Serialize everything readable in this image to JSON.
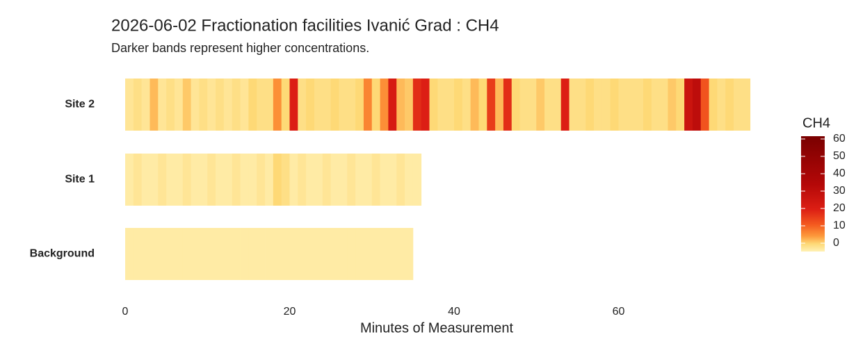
{
  "chart_data": {
    "type": "heatmap",
    "title": "2026-06-02 Fractionation facilities Ivanić Grad : CH4",
    "subtitle": "Darker bands represent higher concentrations.",
    "x_label": "Minutes of Measurement",
    "xlim": [
      0,
      80
    ],
    "xticks": [
      0,
      20,
      40,
      60
    ],
    "legend_title": "CH4",
    "clim": [
      0,
      60
    ],
    "cticks": [
      0,
      10,
      20,
      30,
      40,
      50,
      60
    ],
    "color_stops": [
      {
        "value": 0,
        "color": "#fff1b5"
      },
      {
        "value": 4,
        "color": "#fed976"
      },
      {
        "value": 8,
        "color": "#fd9a3c"
      },
      {
        "value": 14,
        "color": "#f45a1f"
      },
      {
        "value": 22,
        "color": "#dc1e14"
      },
      {
        "value": 35,
        "color": "#b40808"
      },
      {
        "value": 60,
        "color": "#7a0000"
      }
    ],
    "series": [
      {
        "name": "Site 2",
        "x": [
          0,
          1,
          2,
          3,
          4,
          5,
          6,
          7,
          8,
          9,
          10,
          11,
          12,
          13,
          14,
          15,
          16,
          17,
          18,
          19,
          20,
          21,
          22,
          23,
          24,
          25,
          26,
          27,
          28,
          29,
          30,
          31,
          32,
          33,
          34,
          35,
          36,
          37,
          38,
          39,
          40,
          41,
          42,
          43,
          44,
          45,
          46,
          47,
          48,
          49,
          50,
          51,
          52,
          53,
          54,
          55,
          56,
          57,
          58,
          59,
          60,
          61,
          62,
          63,
          64,
          65,
          66,
          67,
          68,
          69,
          70,
          71,
          72,
          73,
          74,
          75
        ],
        "values": [
          2,
          3,
          2,
          6,
          2,
          3,
          2,
          5,
          2,
          3,
          2,
          3,
          2,
          3,
          2,
          4,
          3,
          3,
          9,
          4,
          22,
          3,
          4,
          3,
          3,
          4,
          3,
          3,
          4,
          10,
          4,
          9,
          24,
          6,
          5,
          20,
          22,
          4,
          3,
          3,
          4,
          3,
          6,
          4,
          18,
          6,
          20,
          4,
          3,
          3,
          5,
          3,
          3,
          22,
          3,
          3,
          4,
          3,
          3,
          4,
          3,
          3,
          3,
          4,
          3,
          3,
          5,
          4,
          28,
          32,
          15,
          4,
          3,
          4,
          3,
          3
        ]
      },
      {
        "name": "Site 1",
        "x": [
          0,
          1,
          2,
          3,
          4,
          5,
          6,
          7,
          8,
          9,
          10,
          11,
          12,
          13,
          14,
          15,
          16,
          17,
          18,
          19,
          20,
          21,
          22,
          23,
          24,
          25,
          26,
          27,
          28,
          29,
          30,
          31,
          32,
          33,
          34,
          35
        ],
        "values": [
          1,
          2,
          1,
          1,
          2,
          1,
          1,
          2,
          1,
          1,
          2,
          1,
          1,
          2,
          1,
          1,
          2,
          1,
          4,
          3,
          1,
          2,
          1,
          1,
          2,
          1,
          1,
          2,
          1,
          1,
          2,
          1,
          1,
          2,
          1,
          1
        ]
      },
      {
        "name": "Background",
        "x": [
          0,
          1,
          2,
          3,
          4,
          5,
          6,
          7,
          8,
          9,
          10,
          11,
          12,
          13,
          14,
          15,
          16,
          17,
          18,
          19,
          20,
          21,
          22,
          23,
          24,
          25,
          26,
          27,
          28,
          29,
          30,
          31,
          32,
          33,
          34
        ],
        "values": [
          1,
          1,
          1,
          1,
          1,
          1,
          1,
          1,
          1,
          1,
          1,
          1,
          1,
          1,
          1,
          1,
          1,
          1,
          1,
          1,
          1,
          1,
          1,
          1,
          1,
          1,
          1,
          1,
          1,
          1,
          1,
          1,
          1,
          1,
          1
        ]
      }
    ]
  }
}
